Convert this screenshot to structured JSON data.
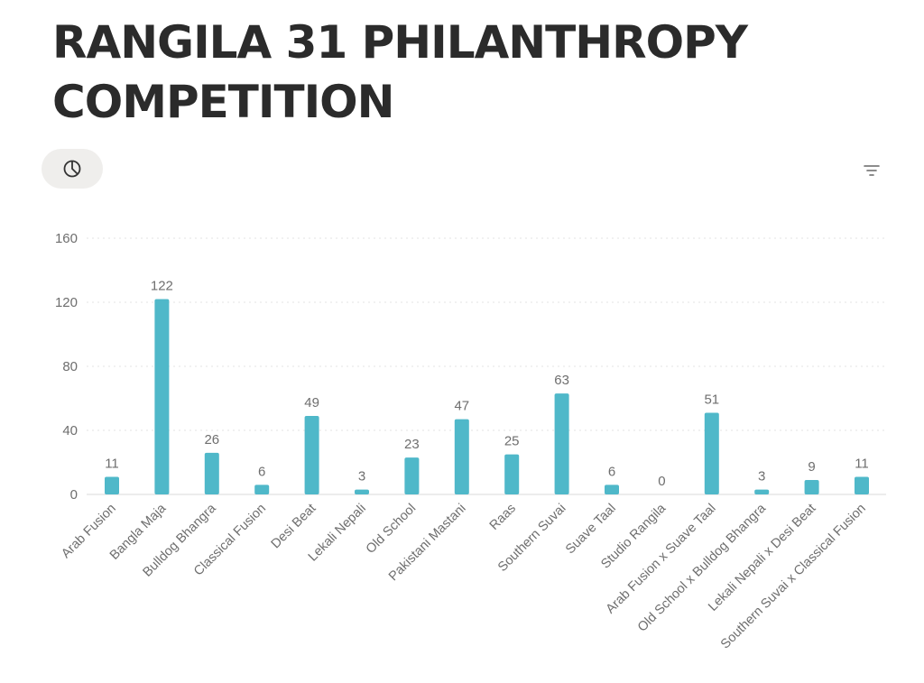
{
  "page": {
    "title": "RANGILA 31 PHILANTHROPY COMPETITION"
  },
  "toolbar": {
    "chart_type_icon": "pie-chart-icon",
    "filter_icon": "filter-icon"
  },
  "chart_data": {
    "type": "bar",
    "categories": [
      "Arab Fusion",
      "Bangla Maja",
      "Bulldog Bhangra",
      "Classical Fusion",
      "Desi Beat",
      "Lekali Nepali",
      "Old School",
      "Pakistani Mastani",
      "Raas",
      "Southern Suvai",
      "Suave Taal",
      "Studio Rangila",
      "Arab Fusion x Suave Taal",
      "Old School x Bulldog Bhangra",
      "Lekali Nepali x Desi Beat",
      "Southern Suvai x Classical Fusion"
    ],
    "values": [
      11,
      122,
      26,
      6,
      49,
      3,
      23,
      47,
      25,
      63,
      6,
      0,
      51,
      3,
      9,
      11
    ],
    "yticks": [
      "0",
      "40",
      "80",
      "120",
      "160"
    ],
    "ylim": [
      0,
      160
    ],
    "grid": true,
    "data_labels": true,
    "bar_color": "#4fb8c9",
    "legend": "none"
  }
}
